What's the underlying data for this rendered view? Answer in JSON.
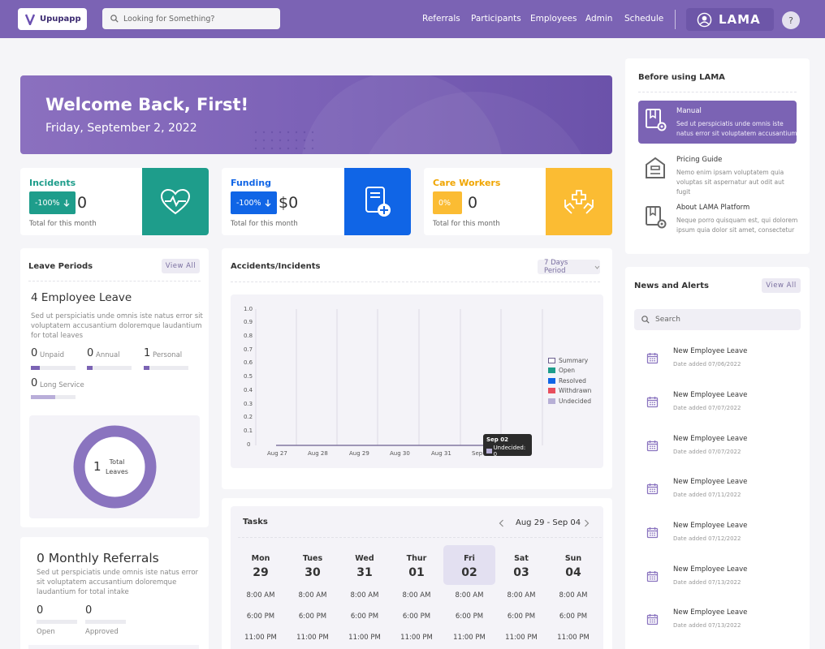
{
  "header": {
    "logo_text": "Upupapp",
    "search_placeholder": "Looking for Something?",
    "nav": [
      "Referrals",
      "Participants",
      "Employees",
      "Admin",
      "Schedule"
    ],
    "brand": "LAMA",
    "help": "?"
  },
  "banner": {
    "title": "Welcome Back, First!",
    "date": "Friday, September 2, 2022"
  },
  "stats": [
    {
      "title": "Incidents",
      "badge": "-100%",
      "value": "0",
      "footer": "Total for this month",
      "color": "#1e9d8b"
    },
    {
      "title": "Funding",
      "badge": "-100%",
      "value": "$0",
      "footer": "Total for this month",
      "color": "#1065e6"
    },
    {
      "title": "Care Workers",
      "badge": "0%",
      "value": "0",
      "footer": "Total for this month",
      "color": "#fbbc33"
    }
  ],
  "leave": {
    "title": "Leave Periods",
    "view_all": "View All",
    "heading": "4 Employee Leave",
    "desc": "Sed ut perspiciatis unde omnis iste natus error sit voluptatem accusantium doloremque laudantium for total leaves",
    "items": [
      {
        "value": "0",
        "label": "Unpaid",
        "fill": 0.2
      },
      {
        "value": "0",
        "label": "Annual",
        "fill": 0.12
      },
      {
        "value": "1",
        "label": "Personal",
        "fill": 0.12
      },
      {
        "value": "0",
        "label": "Long Service",
        "fill": 0.55
      }
    ],
    "donut_value": "1",
    "donut_label_1": "Total",
    "donut_label_2": "Leaves"
  },
  "referrals": {
    "heading": "0 Monthly Referrals",
    "desc": "Sed ut perspiciatis unde omnis iste natus error sit voluptatem accusantium doloremque laudantium for total intake",
    "items": [
      {
        "value": "0",
        "label": "Open"
      },
      {
        "value": "0",
        "label": "Approved"
      }
    ]
  },
  "accidents": {
    "title": "Accidents/Incidents",
    "period": "7 Days Period",
    "y_ticks": [
      "1.0",
      "0.9",
      "0.8",
      "0.7",
      "0.6",
      "0.5",
      "0.4",
      "0.3",
      "0.2",
      "0.1",
      "0"
    ],
    "x_ticks": [
      "Aug 27",
      "Aug 28",
      "Aug 29",
      "Aug 30",
      "Aug 31",
      "Sep"
    ],
    "legend": [
      {
        "name": "Summary",
        "color": "#ffffff",
        "border": "#6b5e8e"
      },
      {
        "name": "Open",
        "color": "#1e9d8b"
      },
      {
        "name": "Resolved",
        "color": "#1065e6"
      },
      {
        "name": "Withdrawn",
        "color": "#e84e5d"
      },
      {
        "name": "Undecided",
        "color": "#b7afd6"
      }
    ],
    "tooltip_title": "Sep 02",
    "tooltip_value": "Undecided: 0"
  },
  "tasks": {
    "title": "Tasks",
    "range": "Aug 29 - Sep 04",
    "days": [
      {
        "name": "Mon",
        "num": "29"
      },
      {
        "name": "Tues",
        "num": "30"
      },
      {
        "name": "Wed",
        "num": "31"
      },
      {
        "name": "Thur",
        "num": "01"
      },
      {
        "name": "Fri",
        "num": "02"
      },
      {
        "name": "Sat",
        "num": "03"
      },
      {
        "name": "Sun",
        "num": "04"
      }
    ],
    "times": [
      "8:00 AM",
      "6:00 PM",
      "11:00 PM"
    ]
  },
  "before": {
    "title": "Before using LAMA",
    "items": [
      {
        "title": "Manual",
        "desc": "Sed ut perspiciatis unde omnis iste natus error sit voluptatem accusantium"
      },
      {
        "title": "Pricing Guide",
        "desc": "Nemo enim ipsam voluptatem quia voluptas sit aspernatur aut odit aut fugit"
      },
      {
        "title": "About LAMA Platform",
        "desc": "Neque porro quisquam est, qui dolorem ipsum quia dolor sit amet, consectetur"
      }
    ]
  },
  "news": {
    "title": "News and Alerts",
    "view_all": "View All",
    "search_placeholder": "Search",
    "items": [
      {
        "title": "New Employee Leave",
        "date": "Date added 07/06/2022"
      },
      {
        "title": "New Employee Leave",
        "date": "Date added 07/07/2022"
      },
      {
        "title": "New Employee Leave",
        "date": "Date added 07/07/2022"
      },
      {
        "title": "New Employee Leave",
        "date": "Date added 07/11/2022"
      },
      {
        "title": "New Employee Leave",
        "date": "Date added 07/12/2022"
      },
      {
        "title": "New Employee Leave",
        "date": "Date added 07/13/2022"
      },
      {
        "title": "New Employee Leave",
        "date": "Date added 07/13/2022"
      }
    ]
  }
}
